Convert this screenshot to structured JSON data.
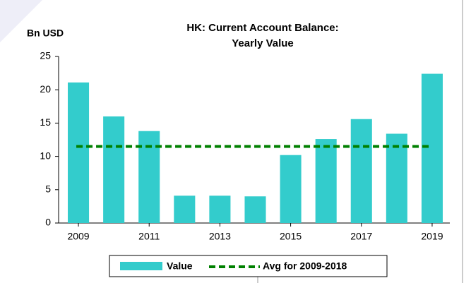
{
  "chart_data": {
    "type": "bar",
    "title": "HK: Current Account Balance:",
    "subtitle": "Yearly Value",
    "y_label": "Bn USD",
    "categories": [
      "2009",
      null,
      "2011",
      null,
      "2013",
      null,
      "2015",
      null,
      "2017",
      null,
      "2019"
    ],
    "series": [
      {
        "name": "Value",
        "color": "#33cccc",
        "values": [
          21.1,
          16.0,
          13.8,
          4.1,
          4.1,
          4.0,
          10.2,
          12.6,
          15.6,
          13.4,
          22.4
        ]
      }
    ],
    "average": {
      "name": "Avg for 2009-2018",
      "value": 11.5,
      "color": "#008000"
    },
    "ylim": [
      0,
      25
    ],
    "yticks": [
      0,
      5,
      10,
      15,
      20,
      25
    ]
  }
}
